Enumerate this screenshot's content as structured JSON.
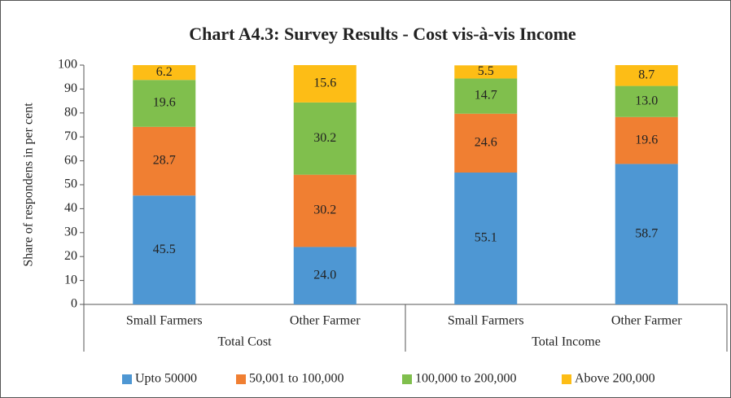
{
  "chart_data": {
    "type": "stacked_bar",
    "title": "Chart A4.3: Survey Results - Cost vis-à-vis Income",
    "y_label": "Share of respondens in per cent",
    "categories": [
      "Small Farmers",
      "Other Farmer",
      "Small Farmers",
      "Other Farmer"
    ],
    "groups": [
      {
        "name": "Total Cost",
        "span": 2
      },
      {
        "name": "Total Income",
        "span": 2
      }
    ],
    "series": [
      {
        "name": "Upto 50000",
        "color": "#4e97d3",
        "values": [
          45.5,
          24.0,
          55.1,
          58.7
        ],
        "value_labels": [
          "45.5",
          "24.0",
          "55.1",
          "58.7"
        ]
      },
      {
        "name": "50,001 to 100,000",
        "color": "#f07f32",
        "values": [
          28.7,
          30.2,
          24.6,
          19.6
        ],
        "value_labels": [
          "28.7",
          "30.2",
          "24.6",
          "19.6"
        ]
      },
      {
        "name": "100,000 to 200,000",
        "color": "#80bf4d",
        "values": [
          19.6,
          30.2,
          14.7,
          13.0
        ],
        "value_labels": [
          "19.6",
          "30.2",
          "14.7",
          "13.0"
        ]
      },
      {
        "name": "Above 200,000",
        "color": "#fdbd16",
        "values": [
          6.2,
          15.6,
          5.5,
          8.7
        ],
        "value_labels": [
          "6.2",
          "15.6",
          "5.5",
          "8.7"
        ]
      }
    ],
    "ylim": [
      0,
      100
    ],
    "yticks": [
      0,
      10,
      20,
      30,
      40,
      50,
      60,
      70,
      80,
      90,
      100
    ],
    "legend": "bottom",
    "grid": false
  }
}
